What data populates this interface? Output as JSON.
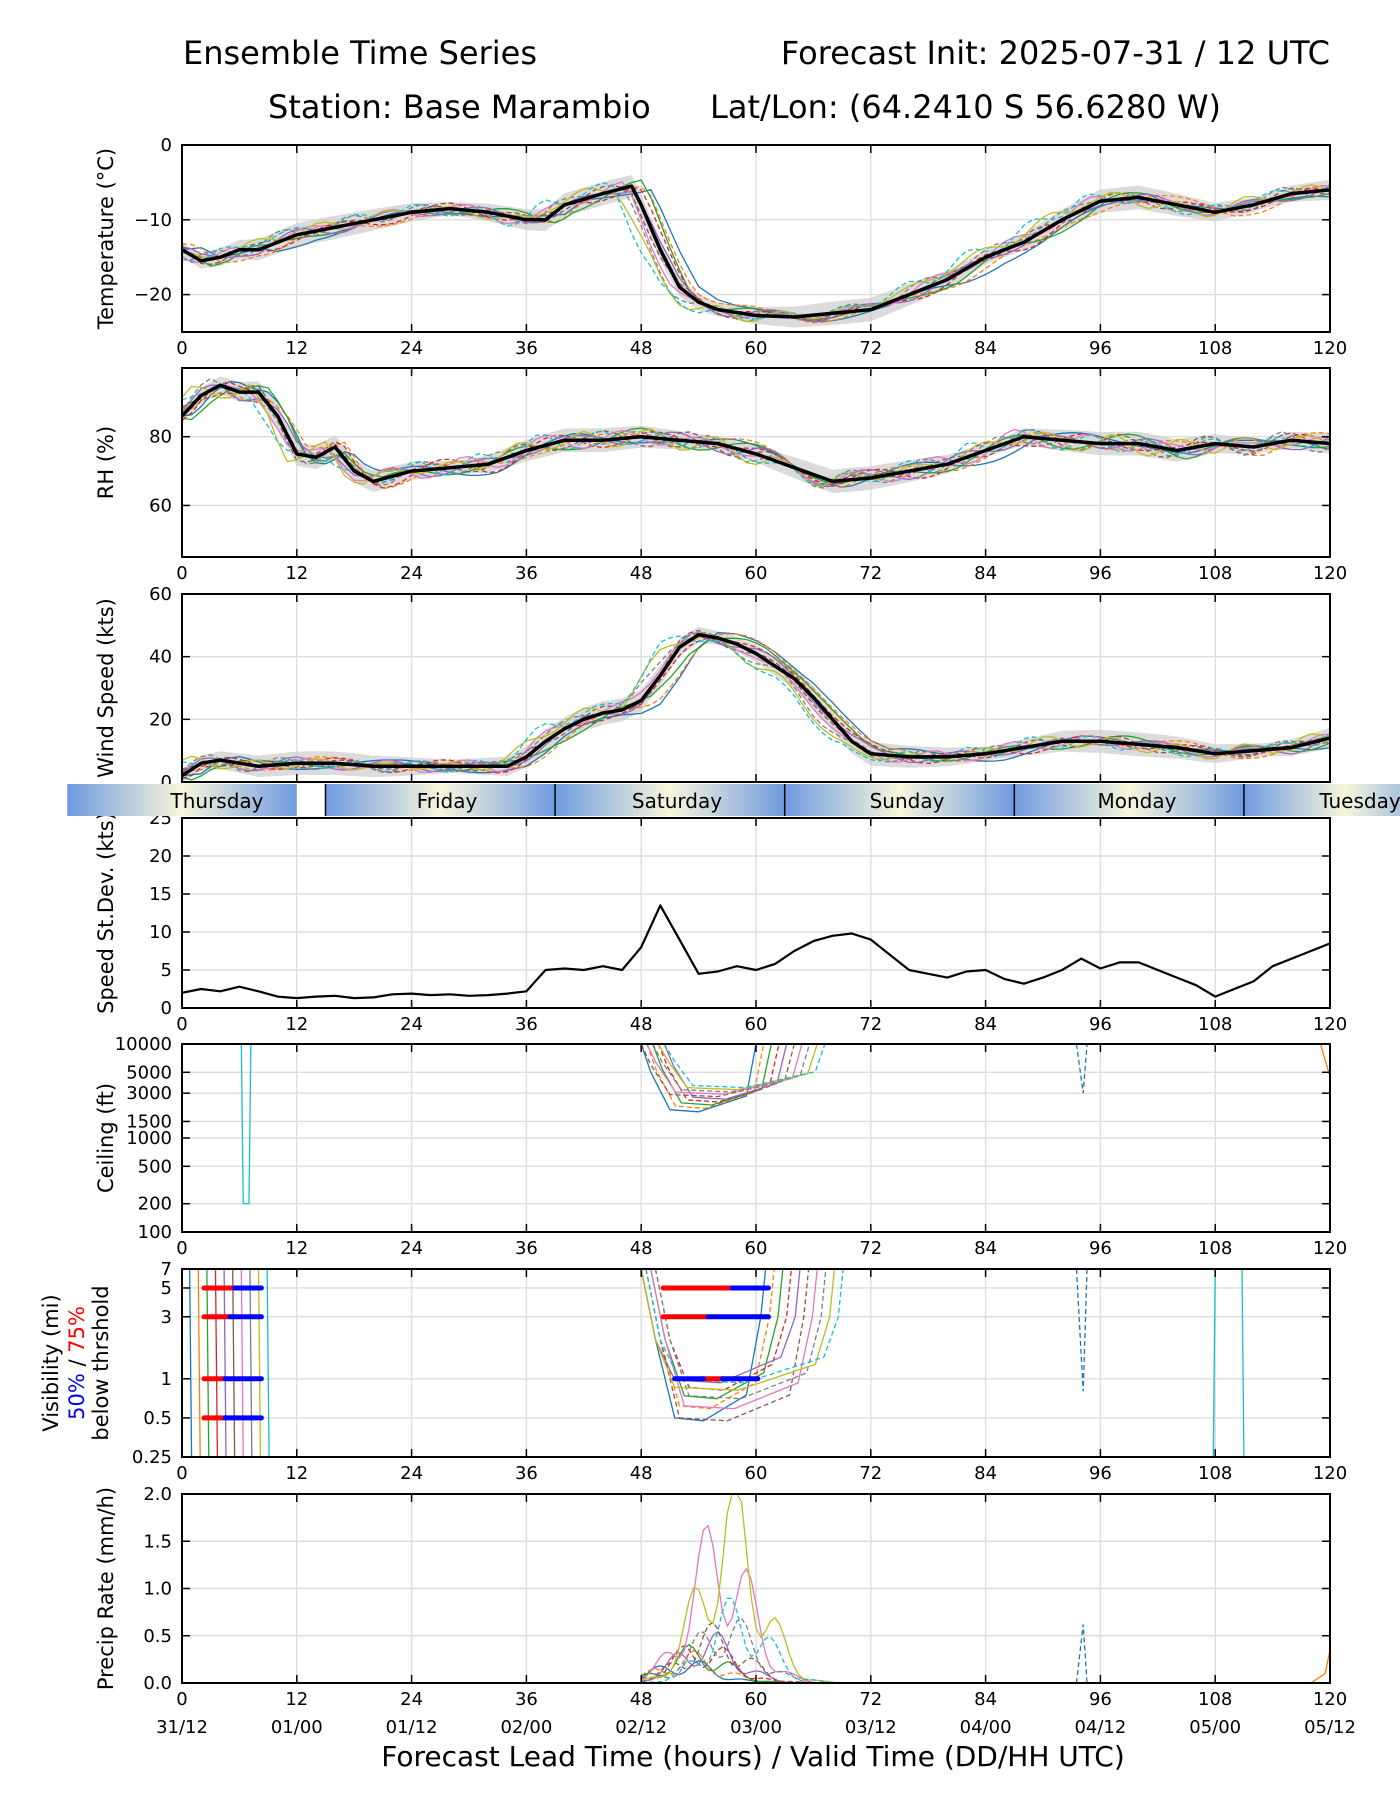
{
  "header": {
    "title_left": "Ensemble Time Series",
    "title_right": "Forecast Init: 2025-07-31 / 12 UTC",
    "station": "Station: Base Marambio",
    "latlon": "Lat/Lon: (64.2410 S 56.6280 W)"
  },
  "xlabel": "Forecast Lead Time (hours) / Valid Time (DD/HH UTC)",
  "day_band": [
    "Thursday",
    "Friday",
    "Saturday",
    "Sunday",
    "Monday",
    "Tuesday"
  ],
  "colors": {
    "mean": "#000000",
    "spread": "#cccccc",
    "pct50": "#0000ff",
    "pct75": "#ff0000",
    "members": [
      "#1f77b4",
      "#ff7f0e",
      "#2ca02c",
      "#d62728",
      "#9467bd",
      "#8c564b",
      "#e377c2",
      "#7f7f7f",
      "#bcbd22",
      "#17becf"
    ]
  },
  "chart_data": [
    {
      "type": "line",
      "ylabel": "Temperature (°C)",
      "xlim": [
        0,
        120
      ],
      "ylim": [
        -25,
        0
      ],
      "x_ticks": [
        "0",
        "12",
        "24",
        "36",
        "48",
        "60",
        "72",
        "84",
        "96",
        "108",
        "120"
      ],
      "y_ticks": [
        "0",
        "−10",
        "−20"
      ],
      "grid": true,
      "series": [
        {
          "x": [
            0,
            2,
            4,
            6,
            8,
            10,
            12,
            16,
            20,
            24,
            28,
            32,
            36,
            38,
            40,
            44,
            47,
            48,
            50,
            52,
            54,
            56,
            60,
            64,
            68,
            72,
            76,
            80,
            84,
            88,
            92,
            96,
            100,
            104,
            108,
            112,
            116,
            120
          ],
          "y": [
            -14,
            -15.5,
            -15,
            -14,
            -14,
            -13,
            -12,
            -11,
            -10,
            -9,
            -8.5,
            -9,
            -10,
            -10,
            -8,
            -6.5,
            -5.5,
            -8,
            -14,
            -19,
            -21,
            -22,
            -22.8,
            -23,
            -22.5,
            -22,
            -20,
            -18,
            -15,
            -13,
            -10,
            -7.5,
            -7,
            -8,
            -9,
            -8,
            -6.5,
            -6
          ]
        }
      ]
    },
    {
      "type": "line",
      "ylabel": "RH (%)",
      "xlim": [
        0,
        120
      ],
      "ylim": [
        45,
        100
      ],
      "x_ticks": [
        "0",
        "12",
        "24",
        "36",
        "48",
        "60",
        "72",
        "84",
        "96",
        "108",
        "120"
      ],
      "y_ticks": [
        "60",
        "80"
      ],
      "grid": true,
      "series": [
        {
          "x": [
            0,
            2,
            4,
            6,
            8,
            10,
            12,
            14,
            16,
            18,
            20,
            24,
            28,
            32,
            36,
            40,
            44,
            48,
            52,
            56,
            60,
            64,
            68,
            72,
            76,
            80,
            84,
            88,
            92,
            96,
            100,
            104,
            108,
            112,
            116,
            120
          ],
          "y": [
            86,
            92,
            95,
            93,
            93,
            86,
            75,
            74,
            77,
            70,
            67,
            70,
            71,
            72,
            76,
            79,
            79,
            80,
            79,
            78,
            75,
            71,
            67,
            68,
            70,
            72,
            76,
            80,
            79,
            78,
            78,
            76,
            78,
            77,
            79,
            78
          ]
        }
      ]
    },
    {
      "type": "line",
      "ylabel": "Wind Speed (kts)",
      "xlim": [
        0,
        120
      ],
      "ylim": [
        0,
        60
      ],
      "x_ticks": [
        "0",
        "12",
        "24",
        "36",
        "48",
        "60",
        "72",
        "84",
        "96",
        "108",
        "120"
      ],
      "y_ticks": [
        "0",
        "20",
        "40",
        "60"
      ],
      "grid": true,
      "series": [
        {
          "x": [
            0,
            2,
            4,
            6,
            8,
            12,
            16,
            20,
            24,
            28,
            32,
            34,
            36,
            38,
            40,
            42,
            44,
            46,
            48,
            50,
            52,
            54,
            56,
            58,
            60,
            62,
            64,
            66,
            68,
            70,
            72,
            76,
            80,
            84,
            88,
            92,
            96,
            100,
            104,
            108,
            112,
            116,
            120
          ],
          "y": [
            2,
            6,
            7,
            6,
            5,
            6,
            6,
            5,
            5,
            5,
            5,
            5,
            8,
            13,
            17,
            20,
            22,
            23,
            26,
            34,
            43,
            47,
            46,
            44,
            41,
            37,
            33,
            27,
            20,
            13,
            9,
            8,
            8,
            9,
            11,
            13,
            13,
            12,
            11,
            9,
            10,
            11,
            14
          ]
        }
      ]
    },
    {
      "type": "line",
      "ylabel": "Speed St.Dev. (kts)",
      "xlim": [
        0,
        120
      ],
      "ylim": [
        0,
        25
      ],
      "x_ticks": [
        "0",
        "12",
        "24",
        "36",
        "48",
        "60",
        "72",
        "84",
        "96",
        "108",
        "120"
      ],
      "y_ticks": [
        "0",
        "5",
        "10",
        "15",
        "20",
        "25"
      ],
      "grid": true,
      "series": [
        {
          "x": [
            0,
            2,
            4,
            6,
            8,
            10,
            12,
            14,
            16,
            18,
            20,
            22,
            24,
            26,
            28,
            30,
            32,
            34,
            36,
            38,
            40,
            42,
            44,
            46,
            48,
            50,
            52,
            54,
            56,
            58,
            60,
            62,
            64,
            66,
            68,
            70,
            72,
            74,
            76,
            78,
            80,
            82,
            84,
            86,
            88,
            90,
            92,
            94,
            96,
            98,
            100,
            102,
            104,
            106,
            108,
            110,
            112,
            114,
            116,
            118,
            120
          ],
          "y": [
            2,
            2.5,
            2.2,
            2.8,
            2.2,
            1.5,
            1.3,
            1.5,
            1.6,
            1.3,
            1.4,
            1.8,
            1.9,
            1.7,
            1.8,
            1.6,
            1.7,
            1.9,
            2.2,
            5,
            5.2,
            5,
            5.5,
            5,
            8,
            13.5,
            9,
            4.5,
            4.8,
            5.5,
            5,
            5.8,
            7.5,
            8.8,
            9.5,
            9.8,
            9,
            7,
            5,
            4.5,
            4,
            4.8,
            5,
            3.8,
            3.2,
            4,
            5,
            6.5,
            5.2,
            6,
            6,
            5,
            4,
            3,
            1.5,
            2.5,
            3.5,
            5.5,
            6.5,
            7.5,
            8.5
          ]
        }
      ]
    },
    {
      "type": "line",
      "ylabel": "Ceiling (ft)",
      "scale": "log",
      "xlim": [
        0,
        120
      ],
      "ylim": [
        100,
        10000
      ],
      "x_ticks": [
        "0",
        "12",
        "24",
        "36",
        "48",
        "60",
        "72",
        "84",
        "96",
        "108",
        "120"
      ],
      "y_ticks": [
        "100",
        "200",
        "500",
        "1000",
        "1500",
        "3000",
        "5000",
        "10000"
      ],
      "grid": true,
      "series": []
    },
    {
      "type": "line",
      "ylabel": "Visibility (mi)",
      "ylabel_pct50": "50%",
      "ylabel_sep": " / ",
      "ylabel_pct75": "75%",
      "ylabel_line3": "below thrshold",
      "scale": "log",
      "xlim": [
        0,
        120
      ],
      "ylim": [
        0.25,
        7
      ],
      "x_ticks": [
        "0",
        "12",
        "24",
        "36",
        "48",
        "60",
        "72",
        "84",
        "96",
        "108",
        "120"
      ],
      "y_ticks": [
        "0.25",
        "0.5",
        "1",
        "3",
        "5",
        "7"
      ],
      "grid": true,
      "threshold_bars": [
        {
          "level": 5,
          "pct75": [
            2.3,
            5.5
          ],
          "pct50": [
            5.5,
            8.3
          ]
        },
        {
          "level": 3,
          "pct75": [
            2.3,
            5.0
          ],
          "pct50": [
            5.0,
            8.3
          ]
        },
        {
          "level": 1,
          "pct75": [
            2.3,
            4.5
          ],
          "pct50": [
            4.5,
            8.3
          ]
        },
        {
          "level": 0.5,
          "pct75": [
            2.3,
            4.5
          ],
          "pct50": [
            4.5,
            8.3
          ]
        },
        {
          "level": 5,
          "pct75": [
            50.3,
            57.5
          ],
          "pct50": [
            57.5,
            61.3
          ]
        },
        {
          "level": 3,
          "pct75": [
            50.3,
            55
          ],
          "pct50": [
            55,
            61.3
          ]
        },
        {
          "level": 1,
          "pct75": [
            54.5,
            56.5
          ],
          "pct50": [
            51.5,
            54.5
          ]
        },
        {
          "level": 1,
          "pct75": [],
          "pct50": [
            56.5,
            60.2
          ]
        }
      ]
    },
    {
      "type": "line",
      "ylabel": "Precip Rate (mm/h)",
      "xlim": [
        0,
        120
      ],
      "ylim": [
        0,
        2.0
      ],
      "x_ticks": [
        "0",
        "12",
        "24",
        "36",
        "48",
        "60",
        "72",
        "84",
        "96",
        "108",
        "120"
      ],
      "x_date_ticks": [
        "31/12",
        "01/00",
        "01/12",
        "02/00",
        "02/12",
        "03/00",
        "03/12",
        "04/00",
        "04/12",
        "05/00",
        "05/12"
      ],
      "y_ticks": [
        "0.0",
        "0.5",
        "1.0",
        "1.5",
        "2.0"
      ],
      "grid": true,
      "series": []
    }
  ]
}
